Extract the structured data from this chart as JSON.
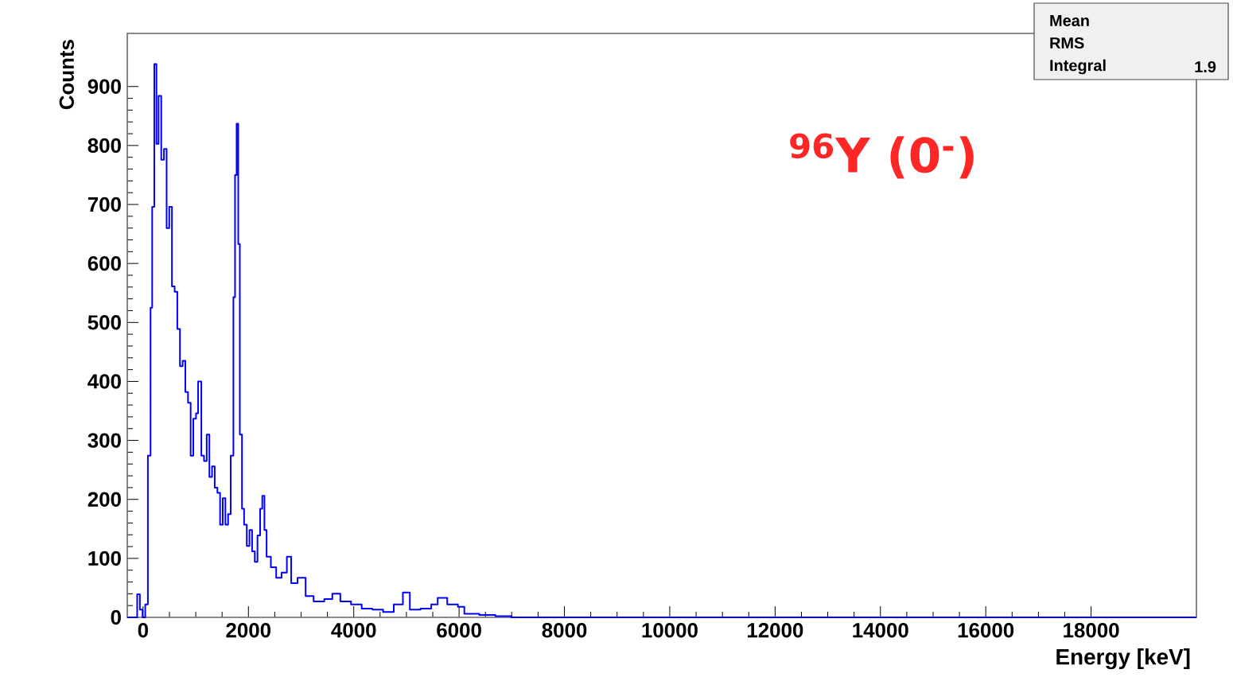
{
  "chart_data": {
    "type": "step",
    "xlabel": "Energy [keV]",
    "ylabel": "Counts",
    "color": "#0000ff",
    "xlim": [
      -300,
      20000
    ],
    "ylim": [
      0,
      990
    ],
    "xticks": [
      0,
      2000,
      4000,
      6000,
      8000,
      10000,
      12000,
      14000,
      16000,
      18000
    ],
    "yticks": [
      0,
      100,
      200,
      300,
      400,
      500,
      600,
      700,
      800,
      900
    ],
    "grid": false,
    "annotations": [
      "$^{96}$Y (0$^{-}$)",
      "Mean",
      "RMS",
      "Integral",
      "1.9"
    ],
    "x": [
      -300,
      -162,
      -112,
      -61,
      -10,
      41,
      91,
      142,
      173,
      213,
      254,
      294,
      345,
      396,
      447,
      497,
      548,
      599,
      650,
      700,
      751,
      802,
      853,
      903,
      954,
      1005,
      1045,
      1106,
      1157,
      1208,
      1259,
      1309,
      1360,
      1411,
      1462,
      1512,
      1563,
      1614,
      1664,
      1715,
      1746,
      1776,
      1807,
      1837,
      1878,
      1918,
      1969,
      2020,
      2070,
      2121,
      2172,
      2222,
      2263,
      2304,
      2345,
      2426,
      2527,
      2629,
      2730,
      2812,
      2933,
      3086,
      3238,
      3441,
      3593,
      3745,
      3948,
      4151,
      4354,
      4557,
      4760,
      4933,
      5065,
      5268,
      5471,
      5593,
      5775,
      5978,
      6100,
      6384,
      6689,
      6993,
      20000
    ],
    "values": [
      0,
      0,
      39,
      13,
      0,
      22,
      274,
      525,
      696,
      938,
      803,
      884,
      776,
      794,
      660,
      696,
      561,
      552,
      489,
      426,
      435,
      382,
      364,
      274,
      337,
      346,
      400,
      274,
      265,
      310,
      238,
      256,
      220,
      211,
      157,
      202,
      157,
      175,
      274,
      543,
      750,
      837,
      633,
      310,
      184,
      157,
      121,
      148,
      112,
      94,
      139,
      184,
      206,
      148,
      103,
      85,
      67,
      76,
      103,
      58,
      67,
      36,
      27,
      31,
      40,
      27,
      22,
      15,
      13,
      9,
      22,
      42,
      13,
      15,
      22,
      33,
      22,
      18,
      6,
      4,
      2,
      0,
      0
    ]
  }
}
